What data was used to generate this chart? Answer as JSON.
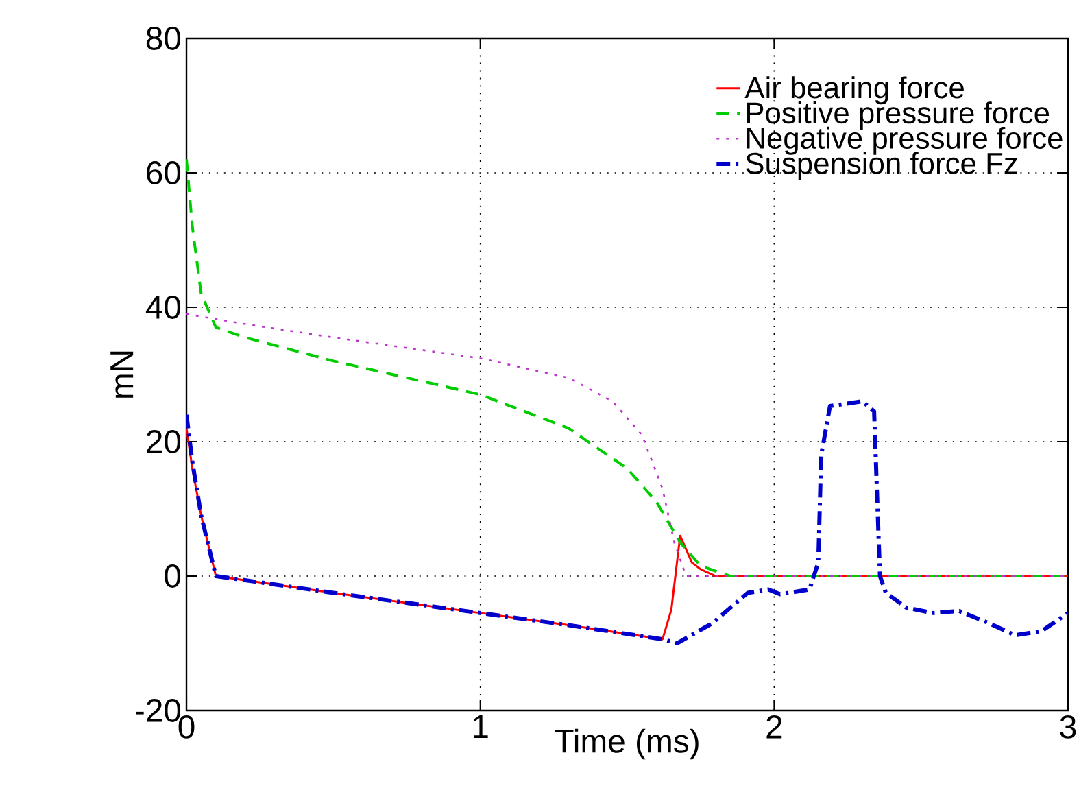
{
  "chart_data": {
    "type": "line",
    "xlabel": "Time (ms)",
    "ylabel": "mN",
    "xlim": [
      0,
      3
    ],
    "ylim": [
      -20,
      80
    ],
    "xticks": [
      0,
      1,
      2,
      3
    ],
    "yticks": [
      -20,
      0,
      20,
      40,
      60,
      80
    ],
    "grid": true,
    "legend": "top right",
    "marker": "none",
    "series": [
      {
        "name": "Air bearing force",
        "color": "#ff0000",
        "line_style": "solid",
        "x": [
          0,
          0.02,
          0.05,
          0.1,
          0.5,
          1.0,
          1.3,
          1.62,
          1.65,
          1.68,
          1.72,
          1.75,
          1.8,
          3
        ],
        "values": [
          22,
          16,
          9,
          0,
          -2.5,
          -5.5,
          -7.3,
          -9.4,
          -5,
          6,
          2,
          1,
          0,
          0
        ]
      },
      {
        "name": "Positive pressure force",
        "color": "#00cc00",
        "line_style": "dashed",
        "x": [
          0,
          0.02,
          0.05,
          0.1,
          0.2,
          0.5,
          1.0,
          1.3,
          1.5,
          1.6,
          1.68,
          1.75,
          1.85,
          3
        ],
        "values": [
          62,
          52,
          42,
          37,
          35.5,
          32,
          27,
          22,
          16,
          11,
          5,
          1.5,
          0,
          0
        ]
      },
      {
        "name": "Negative pressure force",
        "color": "#bb33cc",
        "line_style": "dotted",
        "x": [
          0,
          0.2,
          0.5,
          1.0,
          1.3,
          1.45,
          1.55,
          1.62,
          1.66,
          1.7,
          3
        ],
        "values": [
          39,
          37.5,
          35.5,
          32.4,
          29.5,
          26,
          21,
          13,
          5,
          0,
          0
        ]
      },
      {
        "name": "Suspension force Fz",
        "color": "#0000cc",
        "line_style": "dashdot",
        "x": [
          0,
          0.02,
          0.05,
          0.1,
          0.5,
          1.0,
          1.3,
          1.62,
          1.67,
          1.79,
          1.91,
          1.98,
          2.02,
          2.12,
          2.15,
          2.16,
          2.19,
          2.3,
          2.34,
          2.36,
          2.38,
          2.45,
          2.54,
          2.63,
          2.73,
          2.82,
          2.91,
          3
        ],
        "values": [
          24,
          17,
          9,
          0,
          -2.5,
          -5.5,
          -7.3,
          -9.4,
          -10,
          -7,
          -2.5,
          -2,
          -2.7,
          -2,
          2,
          18,
          25.3,
          26,
          24.5,
          0,
          -2.5,
          -4.7,
          -5.5,
          -5.2,
          -7,
          -8.8,
          -8.2,
          -5.5
        ]
      }
    ]
  }
}
